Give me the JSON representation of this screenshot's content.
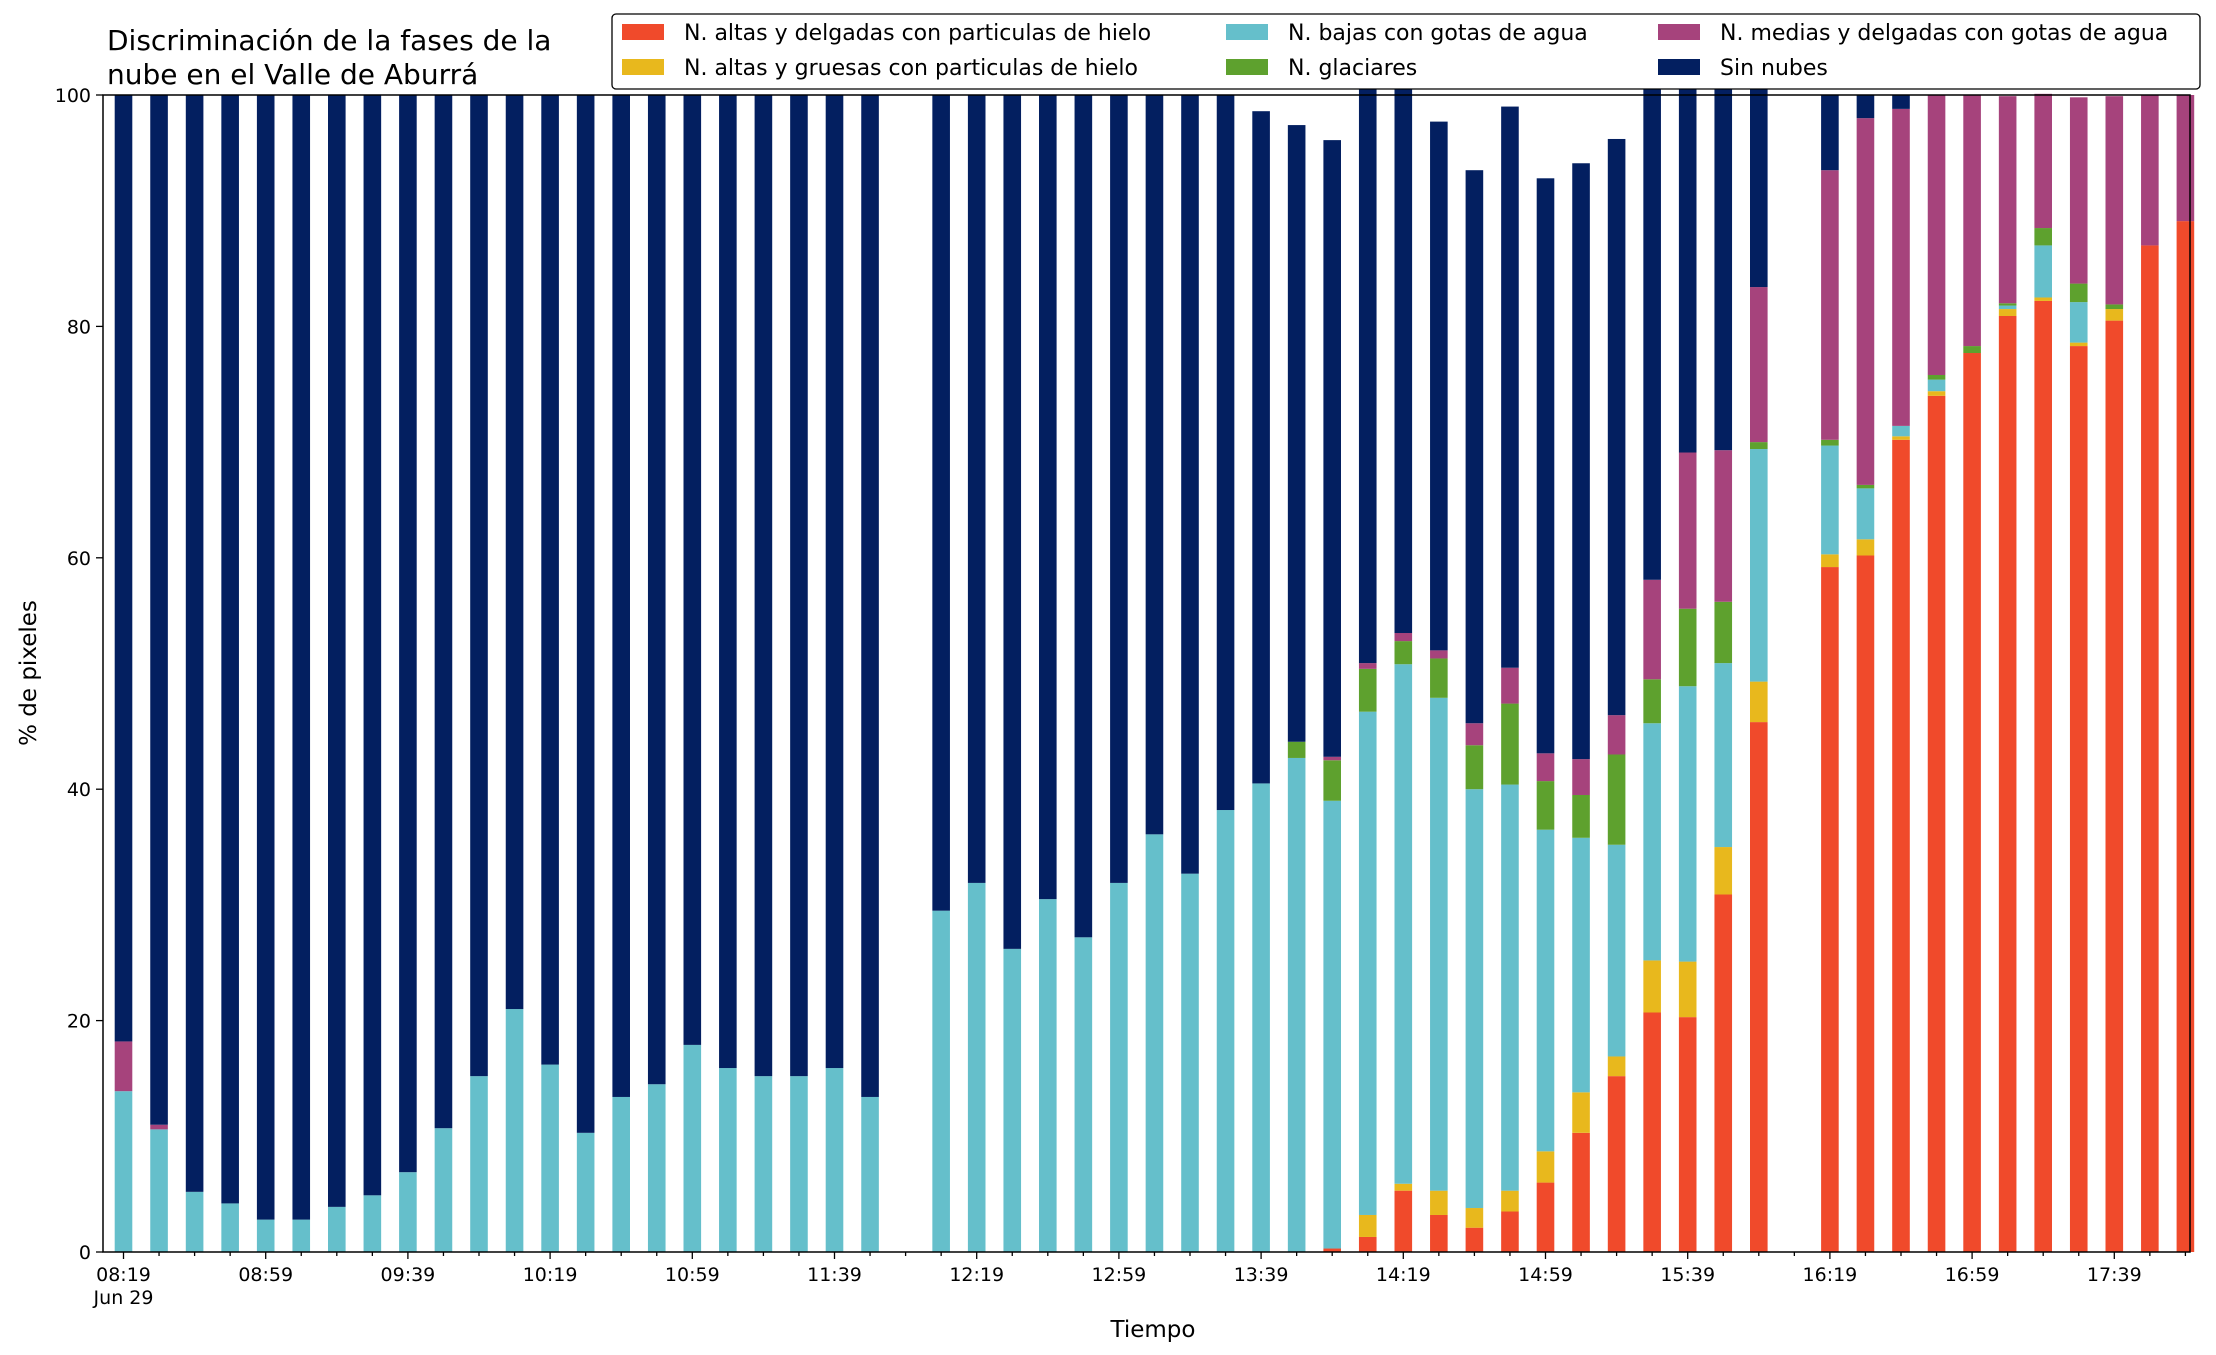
{
  "chart_data": {
    "type": "bar",
    "stacked": true,
    "title_lines": [
      "Discriminación de la fases de la",
      "nube en el Valle de Aburrá"
    ],
    "xlabel": "Tiempo",
    "ylabel": "% de pixeles",
    "ylim": [
      0,
      100
    ],
    "yticks": [
      0,
      20,
      40,
      60,
      80,
      100
    ],
    "legend": {
      "placement": "top-right",
      "columns": 3
    },
    "xtick_labels": [
      {
        "slot": 0,
        "label": "08:19",
        "sublabel": "Jun 29"
      },
      {
        "slot": 4,
        "label": "08:59"
      },
      {
        "slot": 8,
        "label": "09:39"
      },
      {
        "slot": 12,
        "label": "10:19"
      },
      {
        "slot": 16,
        "label": "10:59"
      },
      {
        "slot": 20,
        "label": "11:39"
      },
      {
        "slot": 24,
        "label": "12:19"
      },
      {
        "slot": 28,
        "label": "12:59"
      },
      {
        "slot": 32,
        "label": "13:39"
      },
      {
        "slot": 36,
        "label": "14:19"
      },
      {
        "slot": 40,
        "label": "14:59"
      },
      {
        "slot": 44,
        "label": "15:39"
      },
      {
        "slot": 48,
        "label": "16:19"
      },
      {
        "slot": 52,
        "label": "16:59"
      },
      {
        "slot": 56,
        "label": "17:39"
      }
    ],
    "series": [
      {
        "name": "N. altas y delgadas con particulas de hielo",
        "color": "#f04a2b",
        "values": [
          0,
          0,
          0,
          0,
          0,
          0,
          0,
          0,
          0,
          0,
          0,
          0,
          0,
          0,
          0,
          0,
          0,
          0,
          0,
          0,
          0,
          0,
          null,
          0,
          0,
          0,
          0,
          0,
          0,
          0,
          0,
          0,
          0,
          0,
          0.3,
          1.3,
          5.3,
          3.2,
          2.1,
          3.5,
          6,
          10.3,
          15.2,
          20.7,
          20.3,
          30.9,
          45.8,
          null,
          59.2,
          60.2,
          70.2,
          74,
          77.7,
          80.9,
          82.2,
          78.3,
          80.5,
          87,
          89.1
        ]
      },
      {
        "name": "N. altas y gruesas con particulas de hielo",
        "color": "#e8b81d",
        "values": [
          0,
          0,
          0,
          0,
          0,
          0,
          0,
          0,
          0,
          0,
          0,
          0,
          0,
          0,
          0,
          0,
          0,
          0,
          0,
          0,
          0,
          0,
          null,
          0,
          0,
          0,
          0,
          0,
          0,
          0,
          0,
          0,
          0,
          0,
          0,
          1.9,
          0.6,
          2.1,
          1.7,
          1.8,
          2.7,
          3.5,
          1.7,
          4.5,
          4.8,
          4.1,
          3.5,
          null,
          1.1,
          1.4,
          0.3,
          0.4,
          0,
          0.6,
          0.3,
          0.3,
          1,
          0,
          0
        ]
      },
      {
        "name": "N. bajas con gotas de agua",
        "color": "#65bfcb",
        "values": [
          13.9,
          10.6,
          5.2,
          4.2,
          2.8,
          2.8,
          3.9,
          4.9,
          6.9,
          10.7,
          15.2,
          21,
          16.2,
          10.3,
          13.4,
          14.5,
          17.9,
          15.9,
          15.2,
          15.2,
          15.9,
          13.4,
          null,
          29.5,
          31.9,
          26.2,
          30.5,
          27.2,
          31.9,
          36.1,
          32.7,
          38.2,
          40.5,
          42.7,
          38.7,
          43.5,
          44.9,
          42.6,
          36.2,
          35.1,
          27.8,
          22,
          18.3,
          20.5,
          23.8,
          15.9,
          20.1,
          null,
          9.4,
          4.4,
          0.9,
          1,
          0,
          0.3,
          4.5,
          3.5,
          0,
          0,
          0
        ]
      },
      {
        "name": "N. glaciares",
        "color": "#5ea12e",
        "values": [
          0,
          0,
          0,
          0,
          0,
          0,
          0,
          0,
          0,
          0,
          0,
          0,
          0,
          0,
          0,
          0,
          0,
          0,
          0,
          0,
          0,
          0,
          null,
          0,
          0,
          0,
          0,
          0,
          0,
          0,
          0,
          0,
          0,
          1.4,
          3.5,
          3.7,
          2,
          3.4,
          3.8,
          7,
          4.2,
          3.7,
          7.8,
          3.8,
          6.7,
          5.3,
          0.6,
          null,
          0.5,
          0.3,
          0,
          0.4,
          0.6,
          0.2,
          1.5,
          1.6,
          0.4,
          0,
          0
        ]
      },
      {
        "name": "N. medias y delgadas con gotas de agua",
        "color": "#a6437c",
        "values": [
          4.3,
          0.4,
          0,
          0,
          0,
          0,
          0,
          0,
          0,
          0,
          0,
          0,
          0,
          0,
          0,
          0,
          0,
          0,
          0,
          0,
          0,
          0,
          null,
          0,
          0,
          0,
          0,
          0,
          0,
          0,
          0,
          0,
          0,
          0,
          0.3,
          0.5,
          0.7,
          0.7,
          1.9,
          3.1,
          2.4,
          3.1,
          3.4,
          8.6,
          13.5,
          13.1,
          13.4,
          null,
          23.3,
          31.7,
          27.4,
          24.2,
          21.7,
          17.9,
          11.6,
          16.1,
          18,
          13,
          10.9
        ]
      },
      {
        "name": "Sin nubes",
        "color": "#031f60",
        "values": [
          81.8,
          89,
          94.8,
          95.8,
          97.2,
          97.2,
          96.1,
          95.1,
          93.1,
          89.3,
          84.8,
          79,
          83.8,
          89.7,
          86.6,
          85.5,
          82.1,
          84.1,
          84.8,
          84.8,
          84.1,
          86.6,
          null,
          70.5,
          68.1,
          73.8,
          69.5,
          72.8,
          68.1,
          63.9,
          67.3,
          61.8,
          58.1,
          53.3,
          53.3,
          53.8,
          47.8,
          45.7,
          47.8,
          48.5,
          49.7,
          51.5,
          49.8,
          44.3,
          37.8,
          32.6,
          20.9,
          null,
          6.5,
          2,
          1.2,
          0,
          0,
          0,
          0,
          0,
          0,
          0,
          0
        ]
      }
    ]
  }
}
